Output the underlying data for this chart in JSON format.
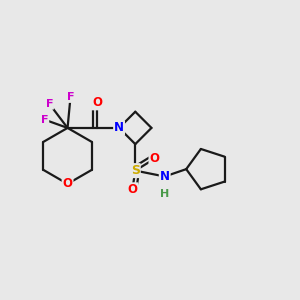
{
  "background_color": "#e8e8e8",
  "bond_color": "#1a1a1a",
  "atom_colors": {
    "O": "#ff0000",
    "N": "#0000ff",
    "S": "#ccaa00",
    "F": "#cc00cc",
    "C": "#1a1a1a",
    "H": "#4a9a4a"
  },
  "figsize": [
    3.0,
    3.0
  ],
  "dpi": 100
}
